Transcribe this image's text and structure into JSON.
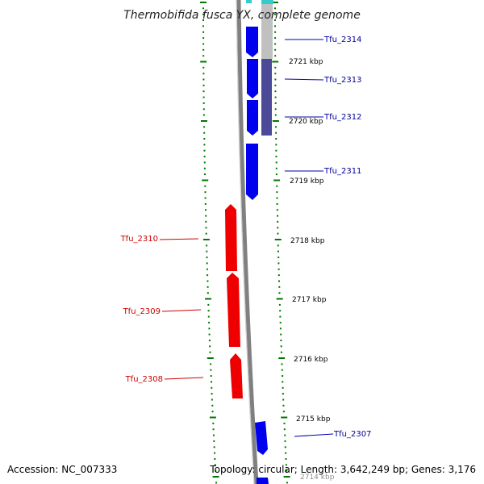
{
  "title": "Thermobifida fusca YX, complete genome",
  "footer": {
    "accession": "Accession: NC_007333",
    "topology": "Topology: circular; Length: 3,642,249 bp; Genes: 3,176"
  },
  "colors": {
    "forward_gene": "#0000ee",
    "reverse_gene": "#ee0000",
    "backbone": "#808080",
    "tick": "#007700",
    "cyan_feature": "#33cccc",
    "gray_feature": "#c0c0c0",
    "slate_feature": "#4a4a99"
  },
  "scale_labels": [
    "2721 kbp",
    "2720 kbp",
    "2719 kbp",
    "2718 kbp",
    "2717 kbp",
    "2716 kbp",
    "2715 kbp",
    "2714 kbp"
  ],
  "genes": {
    "forward": [
      "Tfu_2314",
      "Tfu_2313",
      "Tfu_2312",
      "Tfu_2311",
      "Tfu_2307"
    ],
    "reverse": [
      "Tfu_2310",
      "Tfu_2309",
      "Tfu_2308"
    ]
  }
}
